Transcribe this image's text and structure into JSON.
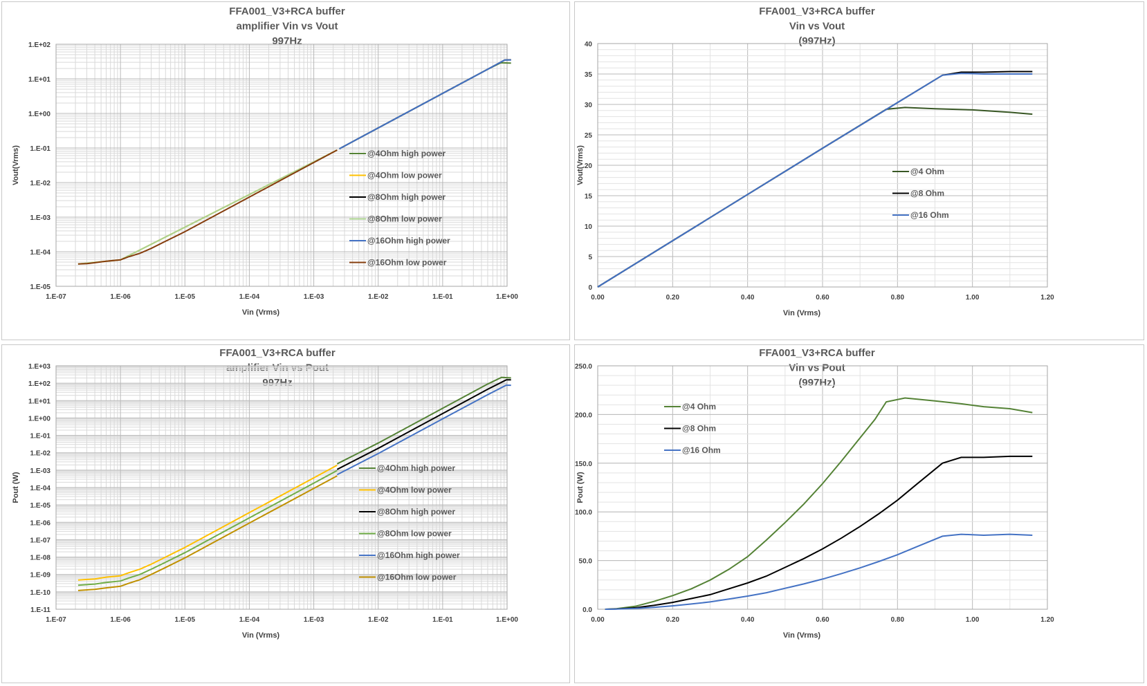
{
  "chart_data": [
    {
      "id": "p1",
      "type": "line",
      "title": [
        "FFA001_V3+RCA buffer",
        "amplifier Vin vs Vout",
        "997Hz"
      ],
      "xlabel": "Vin (Vrms)",
      "ylabel": "Vout(Vrms)",
      "xscale": "log",
      "yscale": "log",
      "xlim": [
        1e-07,
        1
      ],
      "ylim": [
        1e-05,
        100
      ],
      "xticks": [
        "1.E-07",
        "1.E-06",
        "1.E-05",
        "1.E-04",
        "1.E-03",
        "1.E-02",
        "1.E-01",
        "1.E+00"
      ],
      "yticks": [
        "1.E-05",
        "1.E-04",
        "1.E-03",
        "1.E-02",
        "1.E-01",
        "1.E+00",
        "1.E+01",
        "1.E+02"
      ],
      "grid": true,
      "legend_position": "right",
      "series": [
        {
          "name": "@4Ohm high power",
          "color": "#548235",
          "x": [
            0.0025,
            0.01,
            0.1,
            0.5,
            0.8,
            1.15
          ],
          "y": [
            0.095,
            0.38,
            3.8,
            19,
            29.3,
            28.4
          ]
        },
        {
          "name": "@4Ohm low power",
          "color": "#ffc000",
          "x": [
            2.2e-07,
            1e-06,
            0.0023
          ],
          "y": [
            4.4e-05,
            5.8e-05,
            0.087
          ]
        },
        {
          "name": "@8Ohm high power",
          "color": "#000000",
          "x": [
            0.0025,
            0.01,
            0.1,
            0.5,
            0.92,
            1.15
          ],
          "y": [
            0.095,
            0.38,
            3.8,
            19,
            35,
            35.4
          ]
        },
        {
          "name": "@8Ohm low power",
          "color": "#a9d18e",
          "x": [
            2.2e-07,
            1e-06,
            0.0023
          ],
          "y": [
            4.4e-05,
            5.8e-05,
            0.087
          ]
        },
        {
          "name": "@16Ohm high power",
          "color": "#4472c4",
          "x": [
            0.0025,
            0.01,
            0.1,
            0.5,
            0.92,
            1.15
          ],
          "y": [
            0.095,
            0.38,
            3.8,
            19,
            35,
            35
          ]
        },
        {
          "name": "@16Ohm low power",
          "color": "#843c0c",
          "x": [
            2.2e-07,
            3e-07,
            4e-07,
            6e-07,
            1e-06,
            1.3e-06,
            2e-06,
            3e-06,
            5e-06,
            1e-05,
            0.0001,
            0.001,
            0.0023
          ],
          "y": [
            4.4e-05,
            4.5e-05,
            4.8e-05,
            5.3e-05,
            5.8e-05,
            7e-05,
            9e-05,
            0.000125,
            0.0002,
            0.00038,
            0.0038,
            0.038,
            0.087
          ]
        }
      ]
    },
    {
      "id": "p2",
      "type": "line",
      "title": [
        "FFA001_V3+RCA buffer",
        "Vin vs Vout",
        "(997Hz)"
      ],
      "xlabel": "Vin (Vrms)",
      "ylabel": "Vout(Vrms)",
      "xlim": [
        0,
        1.2
      ],
      "ylim": [
        0,
        40
      ],
      "xticks": [
        "0.00",
        "0.20",
        "0.40",
        "0.60",
        "0.80",
        "1.00",
        "1.20"
      ],
      "yticks": [
        "0",
        "5",
        "10",
        "15",
        "20",
        "25",
        "30",
        "35",
        "40"
      ],
      "grid": true,
      "legend_position": "right",
      "series": [
        {
          "name": "@4 Ohm",
          "color": "#375623",
          "x": [
            0,
            0.2,
            0.4,
            0.6,
            0.77,
            0.82,
            0.9,
            1.0,
            1.1,
            1.16
          ],
          "y": [
            0,
            7.6,
            15.2,
            22.8,
            29.2,
            29.5,
            29.3,
            29.1,
            28.7,
            28.4
          ]
        },
        {
          "name": "@8 Ohm",
          "color": "#000000",
          "x": [
            0,
            0.2,
            0.4,
            0.6,
            0.8,
            0.92,
            0.97,
            1.03,
            1.1,
            1.16
          ],
          "y": [
            0,
            7.6,
            15.2,
            22.8,
            30.3,
            34.8,
            35.3,
            35.3,
            35.4,
            35.4
          ]
        },
        {
          "name": "@16 Ohm",
          "color": "#4472c4",
          "x": [
            0,
            0.2,
            0.4,
            0.6,
            0.8,
            0.92,
            0.97,
            1.03,
            1.1,
            1.16
          ],
          "y": [
            0,
            7.6,
            15.2,
            22.8,
            30.3,
            34.8,
            35.1,
            35.0,
            35.0,
            35.0
          ]
        }
      ]
    },
    {
      "id": "p3",
      "type": "line",
      "title": [
        "FFA001_V3+RCA buffer",
        "amplifier  Vin vs Pout",
        "997Hz"
      ],
      "xlabel": "Vin (Vrms)",
      "ylabel": "Pout (W)",
      "xscale": "log",
      "yscale": "log",
      "xlim": [
        1e-07,
        1
      ],
      "ylim": [
        1e-11,
        1000
      ],
      "xticks": [
        "1.E-07",
        "1.E-06",
        "1.E-05",
        "1.E-04",
        "1.E-03",
        "1.E-02",
        "1.E-01",
        "1.E+00"
      ],
      "yticks": [
        "1.E-11",
        "1.E-10",
        "1.E-09",
        "1.E-08",
        "1.E-07",
        "1.E-06",
        "1.E-05",
        "1.E-04",
        "1.E-03",
        "1.E-02",
        "1.E-01",
        "1.E+00",
        "1.E+01",
        "1.E+02",
        "1.E+03"
      ],
      "grid": true,
      "legend_position": "right",
      "series": [
        {
          "name": "@4Ohm high power",
          "color": "#548235",
          "x": [
            0.0023,
            0.01,
            0.1,
            0.5,
            0.82,
            1.15
          ],
          "y": [
            0.0023,
            0.036,
            3.6,
            90,
            217,
            202
          ]
        },
        {
          "name": "@4Ohm low power",
          "color": "#ffc000",
          "x": [
            2.2e-07,
            4e-07,
            6e-07,
            1e-06,
            1.3e-06,
            2e-06,
            3e-06,
            5e-06,
            1e-05,
            0.0001,
            0.001,
            0.0023
          ],
          "y": [
            4.8e-10,
            5.5e-10,
            7e-10,
            8.4e-10,
            1.2e-09,
            2e-09,
            3.9e-09,
            1e-08,
            3.6e-08,
            3.6e-06,
            0.00036,
            0.0019
          ]
        },
        {
          "name": "@8Ohm high power",
          "color": "#000000",
          "x": [
            0.0023,
            0.01,
            0.1,
            0.5,
            0.97,
            1.15
          ],
          "y": [
            0.0011,
            0.018,
            1.8,
            45,
            156,
            157
          ]
        },
        {
          "name": "@8Ohm low power",
          "color": "#70ad47",
          "x": [
            2.2e-07,
            4e-07,
            6e-07,
            1e-06,
            1.3e-06,
            2e-06,
            3e-06,
            5e-06,
            1e-05,
            0.0001,
            0.001,
            0.0023
          ],
          "y": [
            2.4e-10,
            2.8e-10,
            3.5e-10,
            4.2e-10,
            6e-10,
            1e-09,
            2e-09,
            5e-09,
            1.8e-08,
            1.8e-06,
            0.00018,
            0.00095
          ]
        },
        {
          "name": "@16Ohm high power",
          "color": "#4472c4",
          "x": [
            0.0023,
            0.01,
            0.1,
            0.5,
            0.97,
            1.15
          ],
          "y": [
            0.00055,
            0.009,
            0.9,
            22,
            77,
            76
          ]
        },
        {
          "name": "@16Ohm low power",
          "color": "#bf9000",
          "x": [
            2.2e-07,
            4e-07,
            6e-07,
            1e-06,
            1.3e-06,
            2e-06,
            3e-06,
            5e-06,
            1e-05,
            0.0001,
            0.001,
            0.0023
          ],
          "y": [
            1.2e-10,
            1.4e-10,
            1.7e-10,
            2.1e-10,
            3e-10,
            5e-10,
            1e-09,
            2.5e-09,
            9e-09,
            9e-07,
            9e-05,
            0.00047
          ]
        }
      ]
    },
    {
      "id": "p4",
      "type": "line",
      "title": [
        "FFA001_V3+RCA buffer",
        "Vin vs Pout",
        "(997Hz)"
      ],
      "xlabel": "Vin (Vrms)",
      "ylabel": "Pout (W)",
      "xlim": [
        0,
        1.2
      ],
      "ylim": [
        0,
        250
      ],
      "xticks": [
        "0.00",
        "0.20",
        "0.40",
        "0.60",
        "0.80",
        "1.00",
        "1.20"
      ],
      "yticks": [
        "0.0",
        "50.0",
        "100.0",
        "150.0",
        "200.0",
        "250.0"
      ],
      "grid": true,
      "legend_position": "top-left",
      "series": [
        {
          "name": "@4 Ohm",
          "color": "#548235",
          "x": [
            0.02,
            0.05,
            0.1,
            0.15,
            0.2,
            0.25,
            0.3,
            0.35,
            0.4,
            0.45,
            0.5,
            0.55,
            0.6,
            0.65,
            0.7,
            0.74,
            0.77,
            0.82,
            0.9,
            0.97,
            1.03,
            1.1,
            1.16
          ],
          "y": [
            0,
            0.5,
            3,
            8,
            14,
            21,
            30,
            41,
            54,
            71,
            89,
            108,
            129,
            152,
            176,
            195,
            213,
            217,
            214,
            211,
            208,
            206,
            202
          ]
        },
        {
          "name": "@8 Ohm",
          "color": "#000000",
          "x": [
            0.02,
            0.05,
            0.1,
            0.15,
            0.2,
            0.25,
            0.3,
            0.35,
            0.4,
            0.45,
            0.5,
            0.55,
            0.6,
            0.65,
            0.7,
            0.75,
            0.8,
            0.85,
            0.92,
            0.97,
            1.03,
            1.1,
            1.16
          ],
          "y": [
            0,
            0.3,
            1.5,
            4,
            7,
            11,
            15,
            21,
            27,
            34,
            43,
            52,
            62,
            73,
            85,
            98,
            112,
            128,
            150,
            156,
            156,
            157,
            157
          ]
        },
        {
          "name": "@16 Ohm",
          "color": "#4472c4",
          "x": [
            0.02,
            0.05,
            0.1,
            0.15,
            0.2,
            0.25,
            0.3,
            0.35,
            0.4,
            0.45,
            0.5,
            0.55,
            0.6,
            0.65,
            0.7,
            0.75,
            0.8,
            0.85,
            0.92,
            0.97,
            1.03,
            1.1,
            1.16
          ],
          "y": [
            0,
            0.15,
            0.8,
            2,
            3.5,
            5.4,
            7.5,
            10.5,
            13.5,
            17,
            21.5,
            26,
            31,
            36.5,
            42.5,
            49,
            56,
            64,
            75,
            77,
            76,
            77,
            76
          ]
        }
      ]
    }
  ]
}
